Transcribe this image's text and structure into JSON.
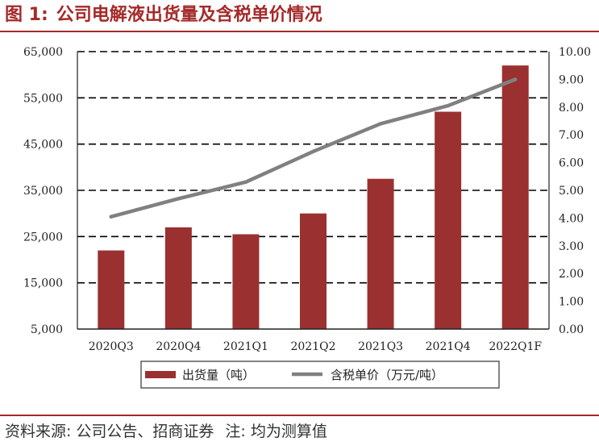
{
  "figure": {
    "number": "图 1:",
    "title": "公司电解液出货量及含税单价情况"
  },
  "source": {
    "label": "资料来源:",
    "text": "公司公告、招商证券",
    "note_label": "注:",
    "note": "均为测算值"
  },
  "colors": {
    "accent": "#a52a2a",
    "bar": "#9b3030",
    "line": "#808080"
  },
  "chart_data": {
    "type": "bar",
    "categories": [
      "2020Q3",
      "2020Q4",
      "2021Q1",
      "2021Q2",
      "2021Q3",
      "2021Q4",
      "2022Q1F"
    ],
    "series": [
      {
        "name": "出货量（吨）",
        "type": "bar",
        "axis": "left",
        "values": [
          22000,
          27000,
          25500,
          30000,
          37500,
          52000,
          62000
        ]
      },
      {
        "name": "含税单价（万元/吨）",
        "type": "line",
        "axis": "right",
        "values": [
          4.05,
          4.7,
          5.3,
          6.4,
          7.4,
          8.05,
          9.0
        ]
      }
    ],
    "y_left": {
      "min": 5000,
      "max": 65000,
      "ticks": [
        "5,000",
        "15,000",
        "25,000",
        "35,000",
        "45,000",
        "55,000",
        "65,000"
      ]
    },
    "y_right": {
      "min": 0,
      "max": 10,
      "ticks": [
        "0.00",
        "1.00",
        "2.00",
        "3.00",
        "4.00",
        "5.00",
        "6.00",
        "7.00",
        "8.00",
        "9.00",
        "10.00"
      ]
    },
    "grid": "horizontal-dashed",
    "legend_position": "bottom"
  }
}
